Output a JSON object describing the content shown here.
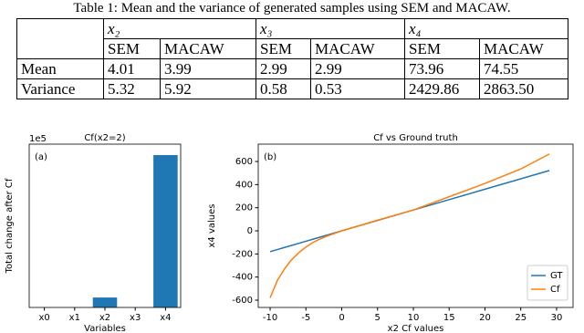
{
  "table": {
    "caption": "Table 1: Mean and the variance of generated samples using SEM and MACAW.",
    "header": [
      "x₂",
      "x₃",
      "x₄"
    ],
    "subheader": [
      "SEM",
      "MACAW",
      "SEM",
      "MACAW",
      "SEM",
      "MACAW"
    ],
    "rows": [
      [
        "Mean",
        "4.01",
        "3.99",
        "2.99",
        "2.99",
        "73.96",
        "74.55"
      ],
      [
        "Variance",
        "5.32",
        "5.92",
        "0.58",
        "0.53",
        "2429.86",
        "2863.50"
      ]
    ]
  },
  "chart_data": [
    {
      "type": "bar",
      "title": "Cf(x2=2)",
      "offset_text": "1e5",
      "annotation": "(a)",
      "x_label": "Variables",
      "y_label": "Total change after Cf",
      "categories": [
        "x0",
        "x1",
        "x2",
        "x3",
        "x4"
      ],
      "values": [
        0,
        0,
        0.3,
        0,
        4.6
      ],
      "color": "#1f77b4",
      "ylim": [
        0,
        4.93
      ]
    },
    {
      "type": "line",
      "title": "Cf vs Ground truth",
      "annotation": "(b)",
      "x_label": "x2 Cf values",
      "y_label": "x4 values",
      "x": [
        -10,
        -9,
        -8,
        -7,
        -6,
        -5,
        -4,
        -3,
        -2,
        0,
        5,
        10,
        15,
        20,
        25,
        29
      ],
      "series": [
        {
          "name": "GT",
          "color": "#1f77b4",
          "values": [
            -180,
            -162,
            -144,
            -126,
            -108,
            -90,
            -72,
            -54,
            -36,
            0,
            90,
            180,
            270,
            360,
            450,
            522
          ]
        },
        {
          "name": "Cf",
          "color": "#ff7f0e",
          "values": [
            -580,
            -430,
            -330,
            -250,
            -190,
            -140,
            -100,
            -70,
            -45,
            0,
            92,
            180,
            295,
            410,
            535,
            665
          ]
        }
      ],
      "xlim": [
        -11.66,
        32.3
      ],
      "xticks": [
        -10,
        -5,
        0,
        5,
        10,
        15,
        20,
        25,
        30
      ],
      "ylim": [
        -663,
        750
      ],
      "yticks": [
        -600,
        -400,
        -200,
        0,
        200,
        400,
        600
      ],
      "legend": "lower right"
    }
  ]
}
